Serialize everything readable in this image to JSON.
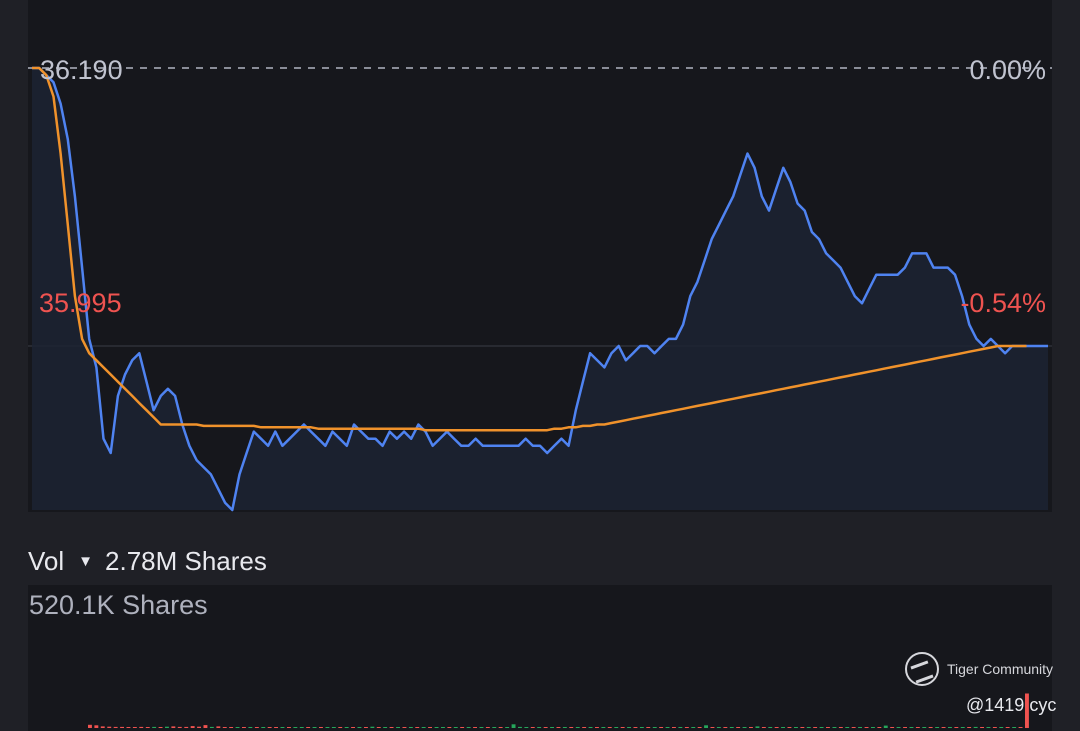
{
  "price_panel": {
    "prev_close_label": "36.190",
    "prev_close_pct": "0.00%",
    "last_label": "35.995",
    "last_pct": "-0.54%"
  },
  "volume": {
    "label": "Vol",
    "total": "2.78M Shares",
    "axis_max": "520.1K Shares"
  },
  "watermark": {
    "brand": "Tiger Community",
    "handle": "@1419 cyc"
  },
  "colors": {
    "price_line": "#4f83f1",
    "avg_line": "#f0922b",
    "down": "#ef5350",
    "up": "#26a65b",
    "panel_bg": "#16171c"
  },
  "chart_data": {
    "type": "line",
    "y_range": [
      35.88,
      36.19
    ],
    "reference_lines": [
      36.19,
      35.995
    ],
    "series": [
      {
        "values": [
          36.19,
          36.19,
          36.185,
          36.18,
          36.165,
          36.14,
          36.1,
          36.05,
          36.0,
          35.98,
          35.93,
          35.92,
          35.96,
          35.975,
          35.985,
          35.99,
          35.97,
          35.95,
          35.96,
          35.965,
          35.96,
          35.94,
          35.925,
          35.915,
          35.91,
          35.905,
          35.895,
          35.885,
          35.88,
          35.905,
          35.92,
          35.935,
          35.93,
          35.925,
          35.935,
          35.925,
          35.93,
          35.935,
          35.94,
          35.935,
          35.93,
          35.925,
          35.935,
          35.93,
          35.925,
          35.94,
          35.935,
          35.93,
          35.93,
          35.925,
          35.935,
          35.93,
          35.935,
          35.93,
          35.94,
          35.935,
          35.925,
          35.93,
          35.935,
          35.93,
          35.925,
          35.925,
          35.93,
          35.925,
          35.925,
          35.925,
          35.925,
          35.925,
          35.925,
          35.93,
          35.925,
          35.925,
          35.92,
          35.925,
          35.93,
          35.925,
          35.95,
          35.97,
          35.99,
          35.985,
          35.98,
          35.99,
          35.995,
          35.985,
          35.99,
          35.995,
          35.995,
          35.99,
          35.995,
          36.0,
          36.0,
          36.01,
          36.03,
          36.04,
          36.055,
          36.07,
          36.08,
          36.09,
          36.1,
          36.115,
          36.13,
          36.12,
          36.1,
          36.09,
          36.105,
          36.12,
          36.11,
          36.095,
          36.09,
          36.075,
          36.07,
          36.06,
          36.055,
          36.05,
          36.04,
          36.03,
          36.025,
          36.035,
          36.045,
          36.045,
          36.045,
          36.045,
          36.05,
          36.06,
          36.06,
          36.06,
          36.05,
          36.05,
          36.05,
          36.045,
          36.03,
          36.01,
          36.0,
          35.995,
          36.0,
          35.995,
          35.99,
          35.995,
          35.995,
          35.995,
          35.995,
          35.995,
          35.995
        ],
        "note": "price"
      },
      {
        "values": [
          36.19,
          36.19,
          36.185,
          36.17,
          36.13,
          36.08,
          36.03,
          36.0,
          35.99,
          35.985,
          35.98,
          35.975,
          35.97,
          35.965,
          35.96,
          35.955,
          35.95,
          35.945,
          35.94,
          35.94,
          35.94,
          35.94,
          35.94,
          35.94,
          35.939,
          35.939,
          35.939,
          35.939,
          35.939,
          35.939,
          35.939,
          35.939,
          35.938,
          35.938,
          35.938,
          35.938,
          35.938,
          35.938,
          35.938,
          35.938,
          35.937,
          35.937,
          35.937,
          35.937,
          35.937,
          35.937,
          35.937,
          35.937,
          35.937,
          35.937,
          35.937,
          35.937,
          35.937,
          35.937,
          35.937,
          35.936,
          35.936,
          35.936,
          35.936,
          35.936,
          35.936,
          35.936,
          35.936,
          35.936,
          35.936,
          35.936,
          35.936,
          35.936,
          35.936,
          35.936,
          35.936,
          35.936,
          35.936,
          35.937,
          35.937,
          35.938,
          35.938,
          35.939,
          35.939,
          35.94,
          35.94,
          35.941,
          35.942,
          35.943,
          35.944,
          35.945,
          35.946,
          35.947,
          35.948,
          35.949,
          35.95,
          35.951,
          35.952,
          35.953,
          35.954,
          35.955,
          35.956,
          35.957,
          35.958,
          35.959,
          35.96,
          35.961,
          35.962,
          35.963,
          35.964,
          35.965,
          35.966,
          35.967,
          35.968,
          35.969,
          35.97,
          35.971,
          35.972,
          35.973,
          35.974,
          35.975,
          35.976,
          35.977,
          35.978,
          35.979,
          35.98,
          35.981,
          35.982,
          35.983,
          35.984,
          35.985,
          35.986,
          35.987,
          35.988,
          35.989,
          35.99,
          35.991,
          35.992,
          35.993,
          35.994,
          35.995,
          35.995,
          35.995,
          35.995,
          35.995
        ],
        "note": "average"
      }
    ],
    "volume_bars_k": [
      [
        12,
        -1
      ],
      [
        10,
        -1
      ],
      [
        6,
        -1
      ],
      [
        5,
        -1
      ],
      [
        4,
        -1
      ],
      [
        4,
        -1
      ],
      [
        3,
        -1
      ],
      [
        3,
        -1
      ],
      [
        4,
        -1
      ],
      [
        3,
        -1
      ],
      [
        4,
        1
      ],
      [
        3,
        -1
      ],
      [
        5,
        1
      ],
      [
        6,
        -1
      ],
      [
        4,
        -1
      ],
      [
        4,
        -1
      ],
      [
        7,
        -1
      ],
      [
        5,
        -1
      ],
      [
        11,
        -1
      ],
      [
        4,
        1
      ],
      [
        6,
        -1
      ],
      [
        3,
        -1
      ],
      [
        2,
        -1
      ],
      [
        2,
        1
      ],
      [
        2,
        -1
      ],
      [
        2,
        1
      ],
      [
        2,
        -1
      ],
      [
        2,
        1
      ],
      [
        2,
        -1
      ],
      [
        2,
        -1
      ],
      [
        2,
        1
      ],
      [
        2,
        -1
      ],
      [
        2,
        1
      ],
      [
        2,
        1
      ],
      [
        2,
        -1
      ],
      [
        2,
        1
      ],
      [
        2,
        -1
      ],
      [
        2,
        1
      ],
      [
        2,
        1
      ],
      [
        2,
        -1
      ],
      [
        2,
        1
      ],
      [
        2,
        -1
      ],
      [
        3,
        1
      ],
      [
        2,
        -1
      ],
      [
        5,
        1
      ],
      [
        2,
        -1
      ],
      [
        2,
        1
      ],
      [
        2,
        -1
      ],
      [
        2,
        1
      ],
      [
        2,
        -1
      ],
      [
        2,
        1
      ],
      [
        2,
        -1
      ],
      [
        2,
        1
      ],
      [
        3,
        -1
      ],
      [
        2,
        1
      ],
      [
        2,
        1
      ],
      [
        2,
        -1
      ],
      [
        2,
        1
      ],
      [
        2,
        -1
      ],
      [
        2,
        1
      ],
      [
        2,
        -1
      ],
      [
        2,
        1
      ],
      [
        2,
        -1
      ],
      [
        2,
        1
      ],
      [
        2,
        -1
      ],
      [
        2,
        1
      ],
      [
        14,
        1
      ],
      [
        4,
        1
      ],
      [
        2,
        1
      ],
      [
        2,
        -1
      ],
      [
        2,
        1
      ],
      [
        2,
        -1
      ],
      [
        2,
        1
      ],
      [
        2,
        -1
      ],
      [
        2,
        1
      ],
      [
        2,
        -1
      ],
      [
        2,
        1
      ],
      [
        2,
        -1
      ],
      [
        3,
        1
      ],
      [
        2,
        -1
      ],
      [
        2,
        1
      ],
      [
        2,
        -1
      ],
      [
        2,
        1
      ],
      [
        2,
        -1
      ],
      [
        2,
        1
      ],
      [
        2,
        -1
      ],
      [
        2,
        1
      ],
      [
        2,
        -1
      ],
      [
        2,
        1
      ],
      [
        2,
        -1
      ],
      [
        3,
        1
      ],
      [
        2,
        -1
      ],
      [
        2,
        1
      ],
      [
        2,
        -1
      ],
      [
        2,
        1
      ],
      [
        2,
        -1
      ],
      [
        10,
        1
      ],
      [
        3,
        -1
      ],
      [
        2,
        1
      ],
      [
        2,
        -1
      ],
      [
        2,
        1
      ],
      [
        2,
        -1
      ],
      [
        2,
        1
      ],
      [
        2,
        -1
      ],
      [
        6,
        1
      ],
      [
        2,
        -1
      ],
      [
        2,
        1
      ],
      [
        2,
        -1
      ],
      [
        3,
        1
      ],
      [
        2,
        -1
      ],
      [
        2,
        1
      ],
      [
        2,
        -1
      ],
      [
        2,
        1
      ],
      [
        2,
        -1
      ],
      [
        2,
        1
      ],
      [
        2,
        -1
      ],
      [
        2,
        1
      ],
      [
        2,
        -1
      ],
      [
        2,
        1
      ],
      [
        2,
        -1
      ],
      [
        2,
        1
      ],
      [
        2,
        -1
      ],
      [
        2,
        1
      ],
      [
        2,
        -1
      ],
      [
        9,
        1
      ],
      [
        2,
        -1
      ],
      [
        2,
        1
      ],
      [
        2,
        -1
      ],
      [
        2,
        1
      ],
      [
        2,
        -1
      ],
      [
        2,
        1
      ],
      [
        3,
        -1
      ],
      [
        2,
        1
      ],
      [
        2,
        -1
      ],
      [
        2,
        1
      ],
      [
        2,
        -1
      ],
      [
        2,
        1
      ],
      [
        2,
        -1
      ],
      [
        4,
        1
      ],
      [
        2,
        -1
      ],
      [
        2,
        1
      ],
      [
        3,
        -1
      ],
      [
        2,
        1
      ],
      [
        2,
        -1
      ],
      [
        2,
        1
      ],
      [
        2,
        -1
      ],
      [
        130,
        -1
      ]
    ]
  }
}
